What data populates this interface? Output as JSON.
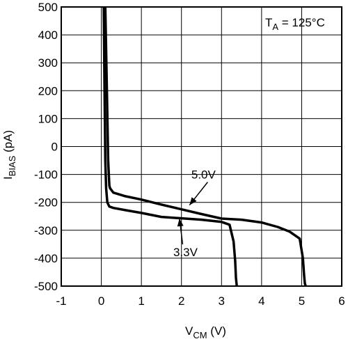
{
  "chart_data": {
    "type": "line",
    "xlabel": {
      "main": "V",
      "sub": "CM",
      "unit": " (V)"
    },
    "ylabel": {
      "main": "I",
      "sub": "BIAS",
      "unit": " (pA)"
    },
    "xlim": [
      -1,
      6
    ],
    "ylim": [
      -500,
      500
    ],
    "xticks": [
      "-1",
      "0",
      "1",
      "2",
      "3",
      "4",
      "5",
      "6"
    ],
    "yticks": [
      "500",
      "400",
      "300",
      "200",
      "100",
      "0",
      "-100",
      "-200",
      "-300",
      "-400",
      "-500"
    ],
    "grid": true,
    "condition": {
      "main": "T",
      "sub": "A",
      "rest": " = 125°C"
    },
    "series": [
      {
        "name": "5.0V",
        "x": [
          0.1,
          0.14,
          0.17,
          0.2,
          0.22,
          0.3,
          0.6,
          1.0,
          1.5,
          2.0,
          2.5,
          3.0,
          3.5,
          4.0,
          4.4,
          4.7,
          4.95,
          5.03,
          5.06,
          5.08,
          5.1
        ],
        "y": [
          500,
          200,
          -50,
          -140,
          -150,
          -165,
          -178,
          -190,
          -208,
          -225,
          -242,
          -258,
          -262,
          -272,
          -288,
          -305,
          -330,
          -400,
          -460,
          -490,
          -500
        ]
      },
      {
        "name": "3.3V",
        "x": [
          0.06,
          0.08,
          0.1,
          0.12,
          0.15,
          0.2,
          0.3,
          0.6,
          1.0,
          1.5,
          2.0,
          2.5,
          3.0,
          3.2,
          3.3,
          3.34,
          3.36,
          3.38
        ],
        "y": [
          500,
          200,
          -50,
          -150,
          -200,
          -215,
          -220,
          -228,
          -238,
          -252,
          -257,
          -262,
          -270,
          -280,
          -340,
          -410,
          -470,
          -500
        ]
      }
    ],
    "annotations": [
      {
        "label": "5.0V",
        "x": 2.55,
        "y": -115,
        "arrow_to_x": 2.2,
        "arrow_to_y": -210
      },
      {
        "label": "3.3V",
        "x": 2.1,
        "y": -393,
        "arrow_to_x": 1.95,
        "arrow_to_y": -258
      }
    ]
  }
}
